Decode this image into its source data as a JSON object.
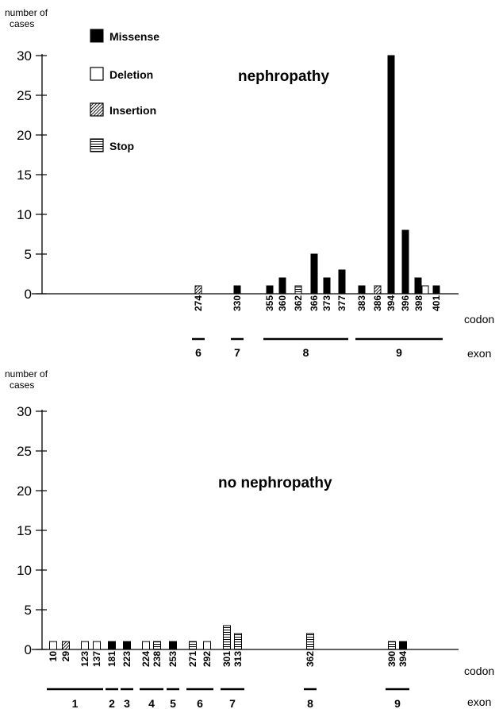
{
  "legend": [
    {
      "type": "missense",
      "label": "Missense"
    },
    {
      "type": "deletion",
      "label": "Deletion"
    },
    {
      "type": "insertion",
      "label": "Insertion"
    },
    {
      "type": "stop",
      "label": "Stop"
    }
  ],
  "chart_data": [
    {
      "type": "bar",
      "title": "nephropathy",
      "ylabel": "number of cases",
      "ylim": [
        0,
        30
      ],
      "yticks": [
        0,
        5,
        10,
        15,
        20,
        25,
        30
      ],
      "codon_label": "codon",
      "exon_label": "exon",
      "codons": [
        "274",
        "330",
        "355",
        "360",
        "362",
        "366",
        "373",
        "377",
        "383",
        "386",
        "394",
        "396",
        "398",
        "401"
      ],
      "bars": [
        {
          "codon": "274",
          "series": "insertion",
          "value": 1
        },
        {
          "codon": "330",
          "series": "missense",
          "value": 1
        },
        {
          "codon": "355",
          "series": "missense",
          "value": 1
        },
        {
          "codon": "360",
          "series": "missense",
          "value": 2
        },
        {
          "codon": "362",
          "series": "stop",
          "value": 1
        },
        {
          "codon": "366",
          "series": "missense",
          "value": 5
        },
        {
          "codon": "373",
          "series": "missense",
          "value": 2
        },
        {
          "codon": "377",
          "series": "missense",
          "value": 3
        },
        {
          "codon": "383",
          "series": "missense",
          "value": 1
        },
        {
          "codon": "386",
          "series": "insertion",
          "value": 1
        },
        {
          "codon": "394",
          "series": "missense",
          "value": 30
        },
        {
          "codon": "396",
          "series": "missense",
          "value": 8
        },
        {
          "codon": "398",
          "series": "missense",
          "value": 2
        },
        {
          "codon": "398",
          "series": "deletion",
          "value": 1
        },
        {
          "codon": "401",
          "series": "missense",
          "value": 1
        }
      ],
      "exons": [
        {
          "label": "6",
          "from": "274",
          "to": "274"
        },
        {
          "label": "7",
          "from": "330",
          "to": "330"
        },
        {
          "label": "8",
          "from": "355",
          "to": "377"
        },
        {
          "label": "9",
          "from": "383",
          "to": "401"
        }
      ]
    },
    {
      "type": "bar",
      "title": "no nephropathy",
      "ylabel": "number of cases",
      "ylim": [
        0,
        30
      ],
      "yticks": [
        0,
        5,
        10,
        15,
        20,
        25,
        30
      ],
      "codon_label": "codon",
      "exon_label": "exon",
      "codons": [
        "10",
        "29",
        "123",
        "137",
        "181",
        "223",
        "224",
        "238",
        "253",
        "271",
        "292",
        "301",
        "313",
        "362",
        "390",
        "394"
      ],
      "bars": [
        {
          "codon": "10",
          "series": "deletion",
          "value": 1
        },
        {
          "codon": "29",
          "series": "insertion",
          "value": 1
        },
        {
          "codon": "123",
          "series": "deletion",
          "value": 1
        },
        {
          "codon": "137",
          "series": "deletion",
          "value": 1
        },
        {
          "codon": "181",
          "series": "missense",
          "value": 1
        },
        {
          "codon": "223",
          "series": "missense",
          "value": 1
        },
        {
          "codon": "224",
          "series": "deletion",
          "value": 1
        },
        {
          "codon": "238",
          "series": "stop",
          "value": 1
        },
        {
          "codon": "253",
          "series": "missense",
          "value": 1
        },
        {
          "codon": "271",
          "series": "stop",
          "value": 1
        },
        {
          "codon": "292",
          "series": "deletion",
          "value": 1
        },
        {
          "codon": "301",
          "series": "stop",
          "value": 3
        },
        {
          "codon": "313",
          "series": "stop",
          "value": 2
        },
        {
          "codon": "362",
          "series": "stop",
          "value": 2
        },
        {
          "codon": "390",
          "series": "stop",
          "value": 1
        },
        {
          "codon": "394",
          "series": "missense",
          "value": 1
        }
      ],
      "exons": [
        {
          "label": "1",
          "from": "10",
          "to": "137"
        },
        {
          "label": "2",
          "from": "181",
          "to": "181"
        },
        {
          "label": "3",
          "from": "223",
          "to": "223"
        },
        {
          "label": "4",
          "from": "224",
          "to": "238"
        },
        {
          "label": "5",
          "from": "253",
          "to": "253"
        },
        {
          "label": "6",
          "from": "271",
          "to": "292"
        },
        {
          "label": "7",
          "from": "301",
          "to": "313"
        },
        {
          "label": "8",
          "from": "362",
          "to": "362"
        },
        {
          "label": "9",
          "from": "390",
          "to": "394"
        }
      ]
    }
  ]
}
